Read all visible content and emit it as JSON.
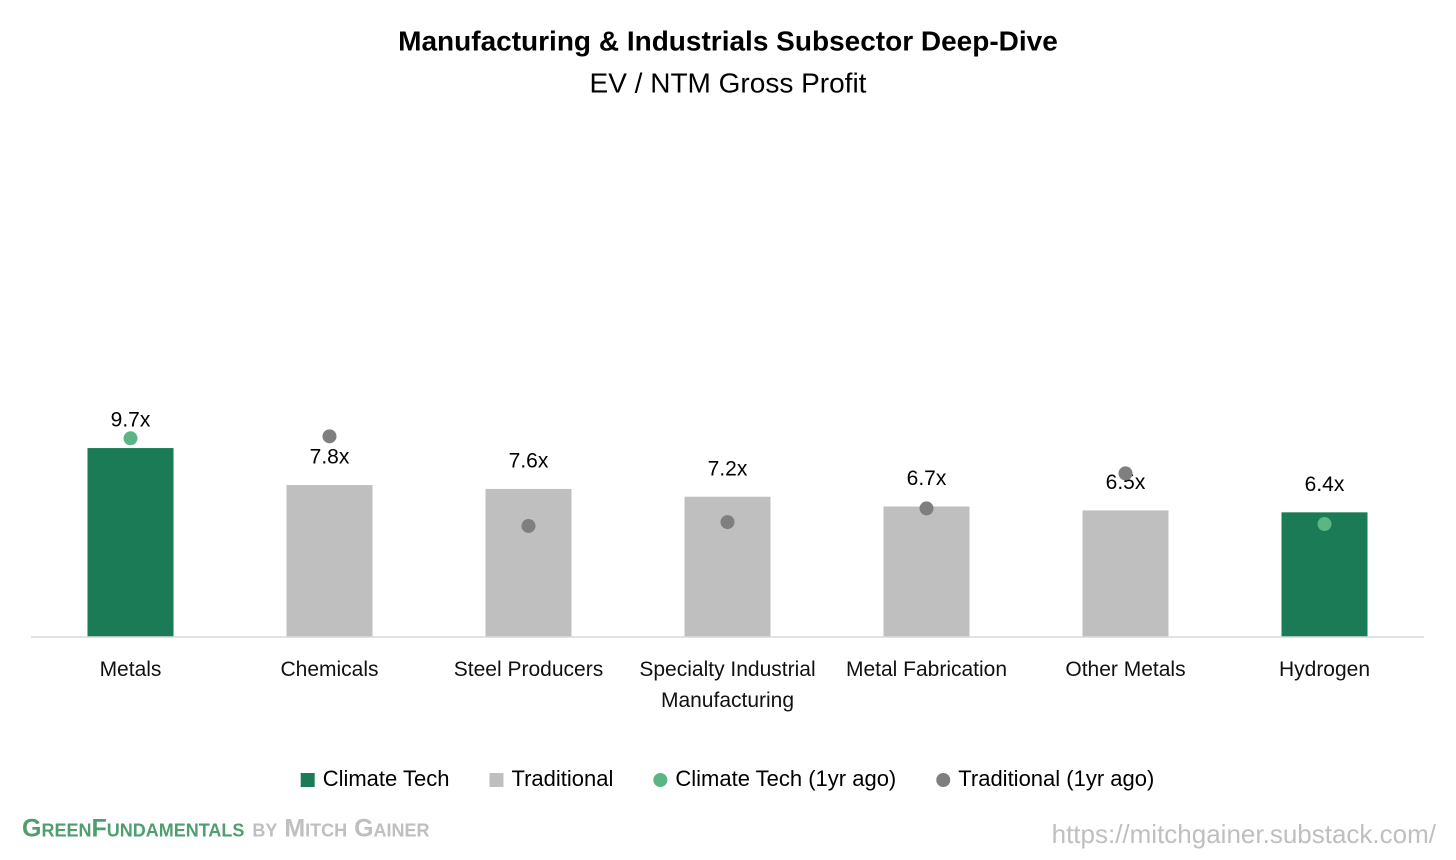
{
  "chart_data": {
    "type": "bar",
    "title": "Manufacturing & Industrials Subsector Deep-Dive",
    "subtitle": "EV / NTM Gross Profit",
    "categories": [
      "Metals",
      "Chemicals",
      "Steel Producers",
      "Specialty Industrial Manufacturing",
      "Metal Fabrication",
      "Other Metals",
      "Hydrogen"
    ],
    "ylim": [
      0,
      25
    ],
    "series": [
      {
        "name": "Climate Tech",
        "type": "bar",
        "color": "#1b7b56",
        "values": [
          9.7,
          null,
          null,
          null,
          null,
          null,
          6.4
        ],
        "value_labels": [
          "9.7x",
          null,
          null,
          null,
          null,
          null,
          "6.4x"
        ]
      },
      {
        "name": "Traditional",
        "type": "bar",
        "color": "#bfbfbf",
        "values": [
          null,
          7.8,
          7.6,
          7.2,
          6.7,
          6.5,
          null
        ],
        "value_labels": [
          null,
          "7.8x",
          "7.6x",
          "7.2x",
          "6.7x",
          "6.5x",
          null
        ]
      },
      {
        "name": "Climate Tech (1yr ago)",
        "type": "dot",
        "color": "#5bb585",
        "values": [
          10.2,
          null,
          null,
          null,
          null,
          null,
          5.8
        ]
      },
      {
        "name": "Traditional (1yr ago)",
        "type": "dot",
        "color": "#7f7f7f",
        "values": [
          null,
          10.3,
          5.7,
          5.9,
          6.6,
          8.4,
          null
        ]
      }
    ],
    "legend": "bottom"
  },
  "footer": {
    "brand": "GreenFundamentals",
    "byline": "by Mitch Gainer",
    "url": "https://mitchgainer.substack.com/"
  }
}
